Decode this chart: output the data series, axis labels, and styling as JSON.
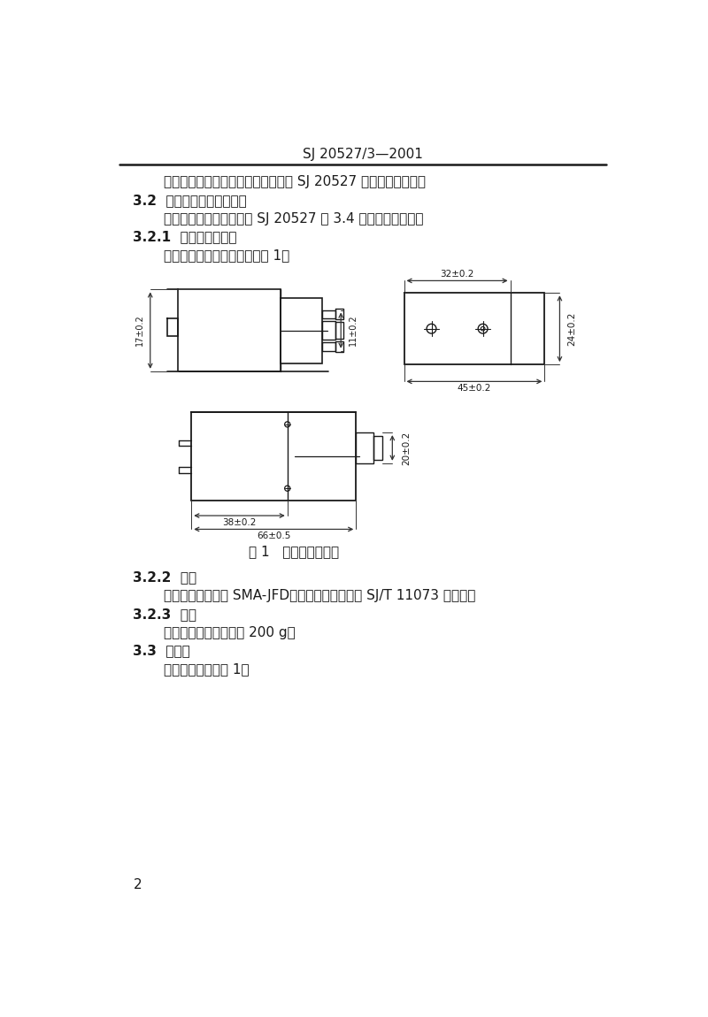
{
  "header_text": "SJ 20527/3—2001",
  "page_number": "2",
  "para0": "本规范规定的振荡器各项要求应符合 SJ 20527 和本规范的规定。",
  "hdr32": "3.2  设计、结构和材料要求",
  "para32": "设计、结构和材料应符合 SJ 20527 第 3.4 和本规范的规定。",
  "hdr321": "3.2.1  外形结构和尺寸",
  "para321": "振荡器的外形结构和尺寸如图 1。",
  "fig_caption": "图 1   外形结构和尺寸",
  "hdr322": "3.2.2  接口",
  "para322": "振荡器输出接口为 SMA-JFD，其技术特性应符合 SJ/T 11073 的规定。",
  "hdr323": "3.2.3  质量",
  "para323": "振荡器的质量应不大于 200 g。",
  "hdr33": "3.3  电特性",
  "para33": "振荡器电特性如表 1。",
  "bg_color": "#ffffff",
  "text_color": "#1a1a1a",
  "dim_color": "#333333",
  "line_color": "#1a1a1a"
}
